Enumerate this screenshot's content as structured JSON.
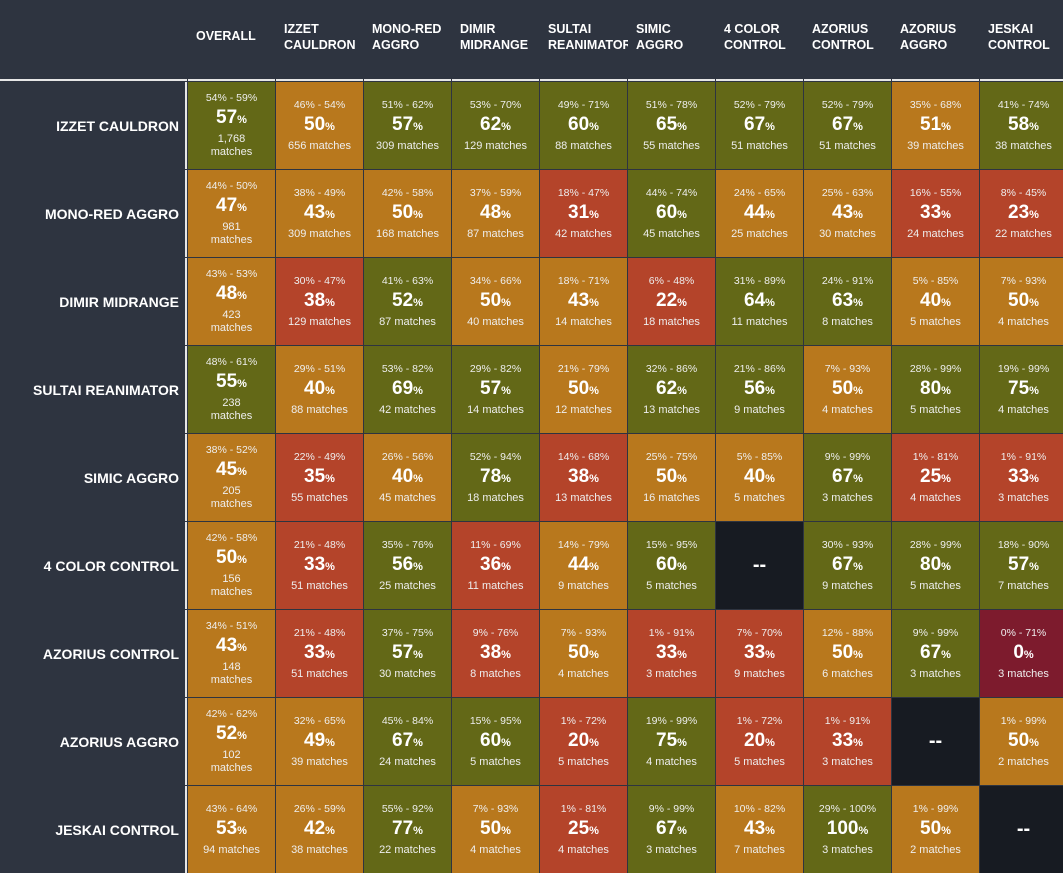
{
  "chart_data": {
    "type": "heatmap",
    "title": "",
    "corner_label": "",
    "columns": [
      "OVERALL",
      "IZZET CAULDRON",
      "MONO-RED AGGRO",
      "DIMIR MIDRANGE",
      "SULTAI REANIMATOR",
      "SIMIC AGGRO",
      "4 COLOR CONTROL",
      "AZORIUS CONTROL",
      "AZORIUS AGGRO",
      "JESKAI CONTROL"
    ],
    "color_scale": {
      "green": "#636817",
      "orange": "#b8781d",
      "red": "#b4442a",
      "darkred": "#7d1b2d",
      "mirror": "#171b22"
    },
    "mirror_label": "--",
    "rows": [
      {
        "name": "IZZET CAULDRON",
        "cells": [
          {
            "ci": "54% - 59%",
            "wr": "57",
            "matches": "1,768 matches",
            "color": "green"
          },
          {
            "ci": "46% - 54%",
            "wr": "50",
            "matches": "656 matches",
            "color": "orange"
          },
          {
            "ci": "51% - 62%",
            "wr": "57",
            "matches": "309 matches",
            "color": "green"
          },
          {
            "ci": "53% - 70%",
            "wr": "62",
            "matches": "129 matches",
            "color": "green"
          },
          {
            "ci": "49% - 71%",
            "wr": "60",
            "matches": "88 matches",
            "color": "green"
          },
          {
            "ci": "51% - 78%",
            "wr": "65",
            "matches": "55 matches",
            "color": "green"
          },
          {
            "ci": "52% - 79%",
            "wr": "67",
            "matches": "51 matches",
            "color": "green"
          },
          {
            "ci": "52% - 79%",
            "wr": "67",
            "matches": "51 matches",
            "color": "green"
          },
          {
            "ci": "35% - 68%",
            "wr": "51",
            "matches": "39 matches",
            "color": "orange"
          },
          {
            "ci": "41% - 74%",
            "wr": "58",
            "matches": "38 matches",
            "color": "green"
          }
        ]
      },
      {
        "name": "MONO-RED AGGRO",
        "cells": [
          {
            "ci": "44% - 50%",
            "wr": "47",
            "matches": "981 matches",
            "color": "orange"
          },
          {
            "ci": "38% - 49%",
            "wr": "43",
            "matches": "309 matches",
            "color": "orange"
          },
          {
            "ci": "42% - 58%",
            "wr": "50",
            "matches": "168 matches",
            "color": "orange"
          },
          {
            "ci": "37% - 59%",
            "wr": "48",
            "matches": "87 matches",
            "color": "orange"
          },
          {
            "ci": "18% - 47%",
            "wr": "31",
            "matches": "42 matches",
            "color": "red"
          },
          {
            "ci": "44% - 74%",
            "wr": "60",
            "matches": "45 matches",
            "color": "green"
          },
          {
            "ci": "24% - 65%",
            "wr": "44",
            "matches": "25 matches",
            "color": "orange"
          },
          {
            "ci": "25% - 63%",
            "wr": "43",
            "matches": "30 matches",
            "color": "orange"
          },
          {
            "ci": "16% - 55%",
            "wr": "33",
            "matches": "24 matches",
            "color": "red"
          },
          {
            "ci": "8% - 45%",
            "wr": "23",
            "matches": "22 matches",
            "color": "red"
          }
        ]
      },
      {
        "name": "DIMIR MIDRANGE",
        "cells": [
          {
            "ci": "43% - 53%",
            "wr": "48",
            "matches": "423 matches",
            "color": "orange"
          },
          {
            "ci": "30% - 47%",
            "wr": "38",
            "matches": "129 matches",
            "color": "red"
          },
          {
            "ci": "41% - 63%",
            "wr": "52",
            "matches": "87 matches",
            "color": "green"
          },
          {
            "ci": "34% - 66%",
            "wr": "50",
            "matches": "40 matches",
            "color": "orange"
          },
          {
            "ci": "18% - 71%",
            "wr": "43",
            "matches": "14 matches",
            "color": "orange"
          },
          {
            "ci": "6% - 48%",
            "wr": "22",
            "matches": "18 matches",
            "color": "red"
          },
          {
            "ci": "31% - 89%",
            "wr": "64",
            "matches": "11 matches",
            "color": "green"
          },
          {
            "ci": "24% - 91%",
            "wr": "63",
            "matches": "8 matches",
            "color": "green"
          },
          {
            "ci": "5% - 85%",
            "wr": "40",
            "matches": "5 matches",
            "color": "orange"
          },
          {
            "ci": "7% - 93%",
            "wr": "50",
            "matches": "4 matches",
            "color": "orange"
          }
        ]
      },
      {
        "name": "SULTAI REANIMATOR",
        "cells": [
          {
            "ci": "48% - 61%",
            "wr": "55",
            "matches": "238 matches",
            "color": "green"
          },
          {
            "ci": "29% - 51%",
            "wr": "40",
            "matches": "88 matches",
            "color": "orange"
          },
          {
            "ci": "53% - 82%",
            "wr": "69",
            "matches": "42 matches",
            "color": "green"
          },
          {
            "ci": "29% - 82%",
            "wr": "57",
            "matches": "14 matches",
            "color": "green"
          },
          {
            "ci": "21% - 79%",
            "wr": "50",
            "matches": "12 matches",
            "color": "orange"
          },
          {
            "ci": "32% - 86%",
            "wr": "62",
            "matches": "13 matches",
            "color": "green"
          },
          {
            "ci": "21% - 86%",
            "wr": "56",
            "matches": "9 matches",
            "color": "green"
          },
          {
            "ci": "7% - 93%",
            "wr": "50",
            "matches": "4 matches",
            "color": "orange"
          },
          {
            "ci": "28% - 99%",
            "wr": "80",
            "matches": "5 matches",
            "color": "green"
          },
          {
            "ci": "19% - 99%",
            "wr": "75",
            "matches": "4 matches",
            "color": "green"
          }
        ]
      },
      {
        "name": "SIMIC AGGRO",
        "cells": [
          {
            "ci": "38% - 52%",
            "wr": "45",
            "matches": "205 matches",
            "color": "orange"
          },
          {
            "ci": "22% - 49%",
            "wr": "35",
            "matches": "55 matches",
            "color": "red"
          },
          {
            "ci": "26% - 56%",
            "wr": "40",
            "matches": "45 matches",
            "color": "orange"
          },
          {
            "ci": "52% - 94%",
            "wr": "78",
            "matches": "18 matches",
            "color": "green"
          },
          {
            "ci": "14% - 68%",
            "wr": "38",
            "matches": "13 matches",
            "color": "red"
          },
          {
            "ci": "25% - 75%",
            "wr": "50",
            "matches": "16 matches",
            "color": "orange"
          },
          {
            "ci": "5% - 85%",
            "wr": "40",
            "matches": "5 matches",
            "color": "orange"
          },
          {
            "ci": "9% - 99%",
            "wr": "67",
            "matches": "3 matches",
            "color": "green"
          },
          {
            "ci": "1% - 81%",
            "wr": "25",
            "matches": "4 matches",
            "color": "red"
          },
          {
            "ci": "1% - 91%",
            "wr": "33",
            "matches": "3 matches",
            "color": "red"
          }
        ]
      },
      {
        "name": "4 COLOR CONTROL",
        "cells": [
          {
            "ci": "42% - 58%",
            "wr": "50",
            "matches": "156 matches",
            "color": "orange"
          },
          {
            "ci": "21% - 48%",
            "wr": "33",
            "matches": "51 matches",
            "color": "red"
          },
          {
            "ci": "35% - 76%",
            "wr": "56",
            "matches": "25 matches",
            "color": "green"
          },
          {
            "ci": "11% - 69%",
            "wr": "36",
            "matches": "11 matches",
            "color": "red"
          },
          {
            "ci": "14% - 79%",
            "wr": "44",
            "matches": "9 matches",
            "color": "orange"
          },
          {
            "ci": "15% - 95%",
            "wr": "60",
            "matches": "5 matches",
            "color": "green"
          },
          {
            "mirror": true
          },
          {
            "ci": "30% - 93%",
            "wr": "67",
            "matches": "9 matches",
            "color": "green"
          },
          {
            "ci": "28% - 99%",
            "wr": "80",
            "matches": "5 matches",
            "color": "green"
          },
          {
            "ci": "18% - 90%",
            "wr": "57",
            "matches": "7 matches",
            "color": "green"
          }
        ]
      },
      {
        "name": "AZORIUS CONTROL",
        "cells": [
          {
            "ci": "34% - 51%",
            "wr": "43",
            "matches": "148 matches",
            "color": "orange"
          },
          {
            "ci": "21% - 48%",
            "wr": "33",
            "matches": "51 matches",
            "color": "red"
          },
          {
            "ci": "37% - 75%",
            "wr": "57",
            "matches": "30 matches",
            "color": "green"
          },
          {
            "ci": "9% - 76%",
            "wr": "38",
            "matches": "8 matches",
            "color": "red"
          },
          {
            "ci": "7% - 93%",
            "wr": "50",
            "matches": "4 matches",
            "color": "orange"
          },
          {
            "ci": "1% - 91%",
            "wr": "33",
            "matches": "3 matches",
            "color": "red"
          },
          {
            "ci": "7% - 70%",
            "wr": "33",
            "matches": "9 matches",
            "color": "red"
          },
          {
            "ci": "12% - 88%",
            "wr": "50",
            "matches": "6 matches",
            "color": "orange"
          },
          {
            "ci": "9% - 99%",
            "wr": "67",
            "matches": "3 matches",
            "color": "green"
          },
          {
            "ci": "0% - 71%",
            "wr": "0",
            "matches": "3 matches",
            "color": "darkred"
          }
        ]
      },
      {
        "name": "AZORIUS AGGRO",
        "cells": [
          {
            "ci": "42% - 62%",
            "wr": "52",
            "matches": "102 matches",
            "color": "orange"
          },
          {
            "ci": "32% - 65%",
            "wr": "49",
            "matches": "39 matches",
            "color": "orange"
          },
          {
            "ci": "45% - 84%",
            "wr": "67",
            "matches": "24 matches",
            "color": "green"
          },
          {
            "ci": "15% - 95%",
            "wr": "60",
            "matches": "5 matches",
            "color": "green"
          },
          {
            "ci": "1% - 72%",
            "wr": "20",
            "matches": "5 matches",
            "color": "red"
          },
          {
            "ci": "19% - 99%",
            "wr": "75",
            "matches": "4 matches",
            "color": "green"
          },
          {
            "ci": "1% - 72%",
            "wr": "20",
            "matches": "5 matches",
            "color": "red"
          },
          {
            "ci": "1% - 91%",
            "wr": "33",
            "matches": "3 matches",
            "color": "red"
          },
          {
            "mirror": true
          },
          {
            "ci": "1% - 99%",
            "wr": "50",
            "matches": "2 matches",
            "color": "orange"
          }
        ]
      },
      {
        "name": "JESKAI CONTROL",
        "cells": [
          {
            "ci": "43% - 64%",
            "wr": "53",
            "matches": "94 matches",
            "color": "orange"
          },
          {
            "ci": "26% - 59%",
            "wr": "42",
            "matches": "38 matches",
            "color": "orange"
          },
          {
            "ci": "55% - 92%",
            "wr": "77",
            "matches": "22 matches",
            "color": "green"
          },
          {
            "ci": "7% - 93%",
            "wr": "50",
            "matches": "4 matches",
            "color": "orange"
          },
          {
            "ci": "1% - 81%",
            "wr": "25",
            "matches": "4 matches",
            "color": "red"
          },
          {
            "ci": "9% - 99%",
            "wr": "67",
            "matches": "3 matches",
            "color": "green"
          },
          {
            "ci": "10% - 82%",
            "wr": "43",
            "matches": "7 matches",
            "color": "orange"
          },
          {
            "ci": "29% - 100%",
            "wr": "100",
            "matches": "3 matches",
            "color": "green"
          },
          {
            "ci": "1% - 99%",
            "wr": "50",
            "matches": "2 matches",
            "color": "orange"
          },
          {
            "mirror": true
          }
        ]
      }
    ]
  }
}
